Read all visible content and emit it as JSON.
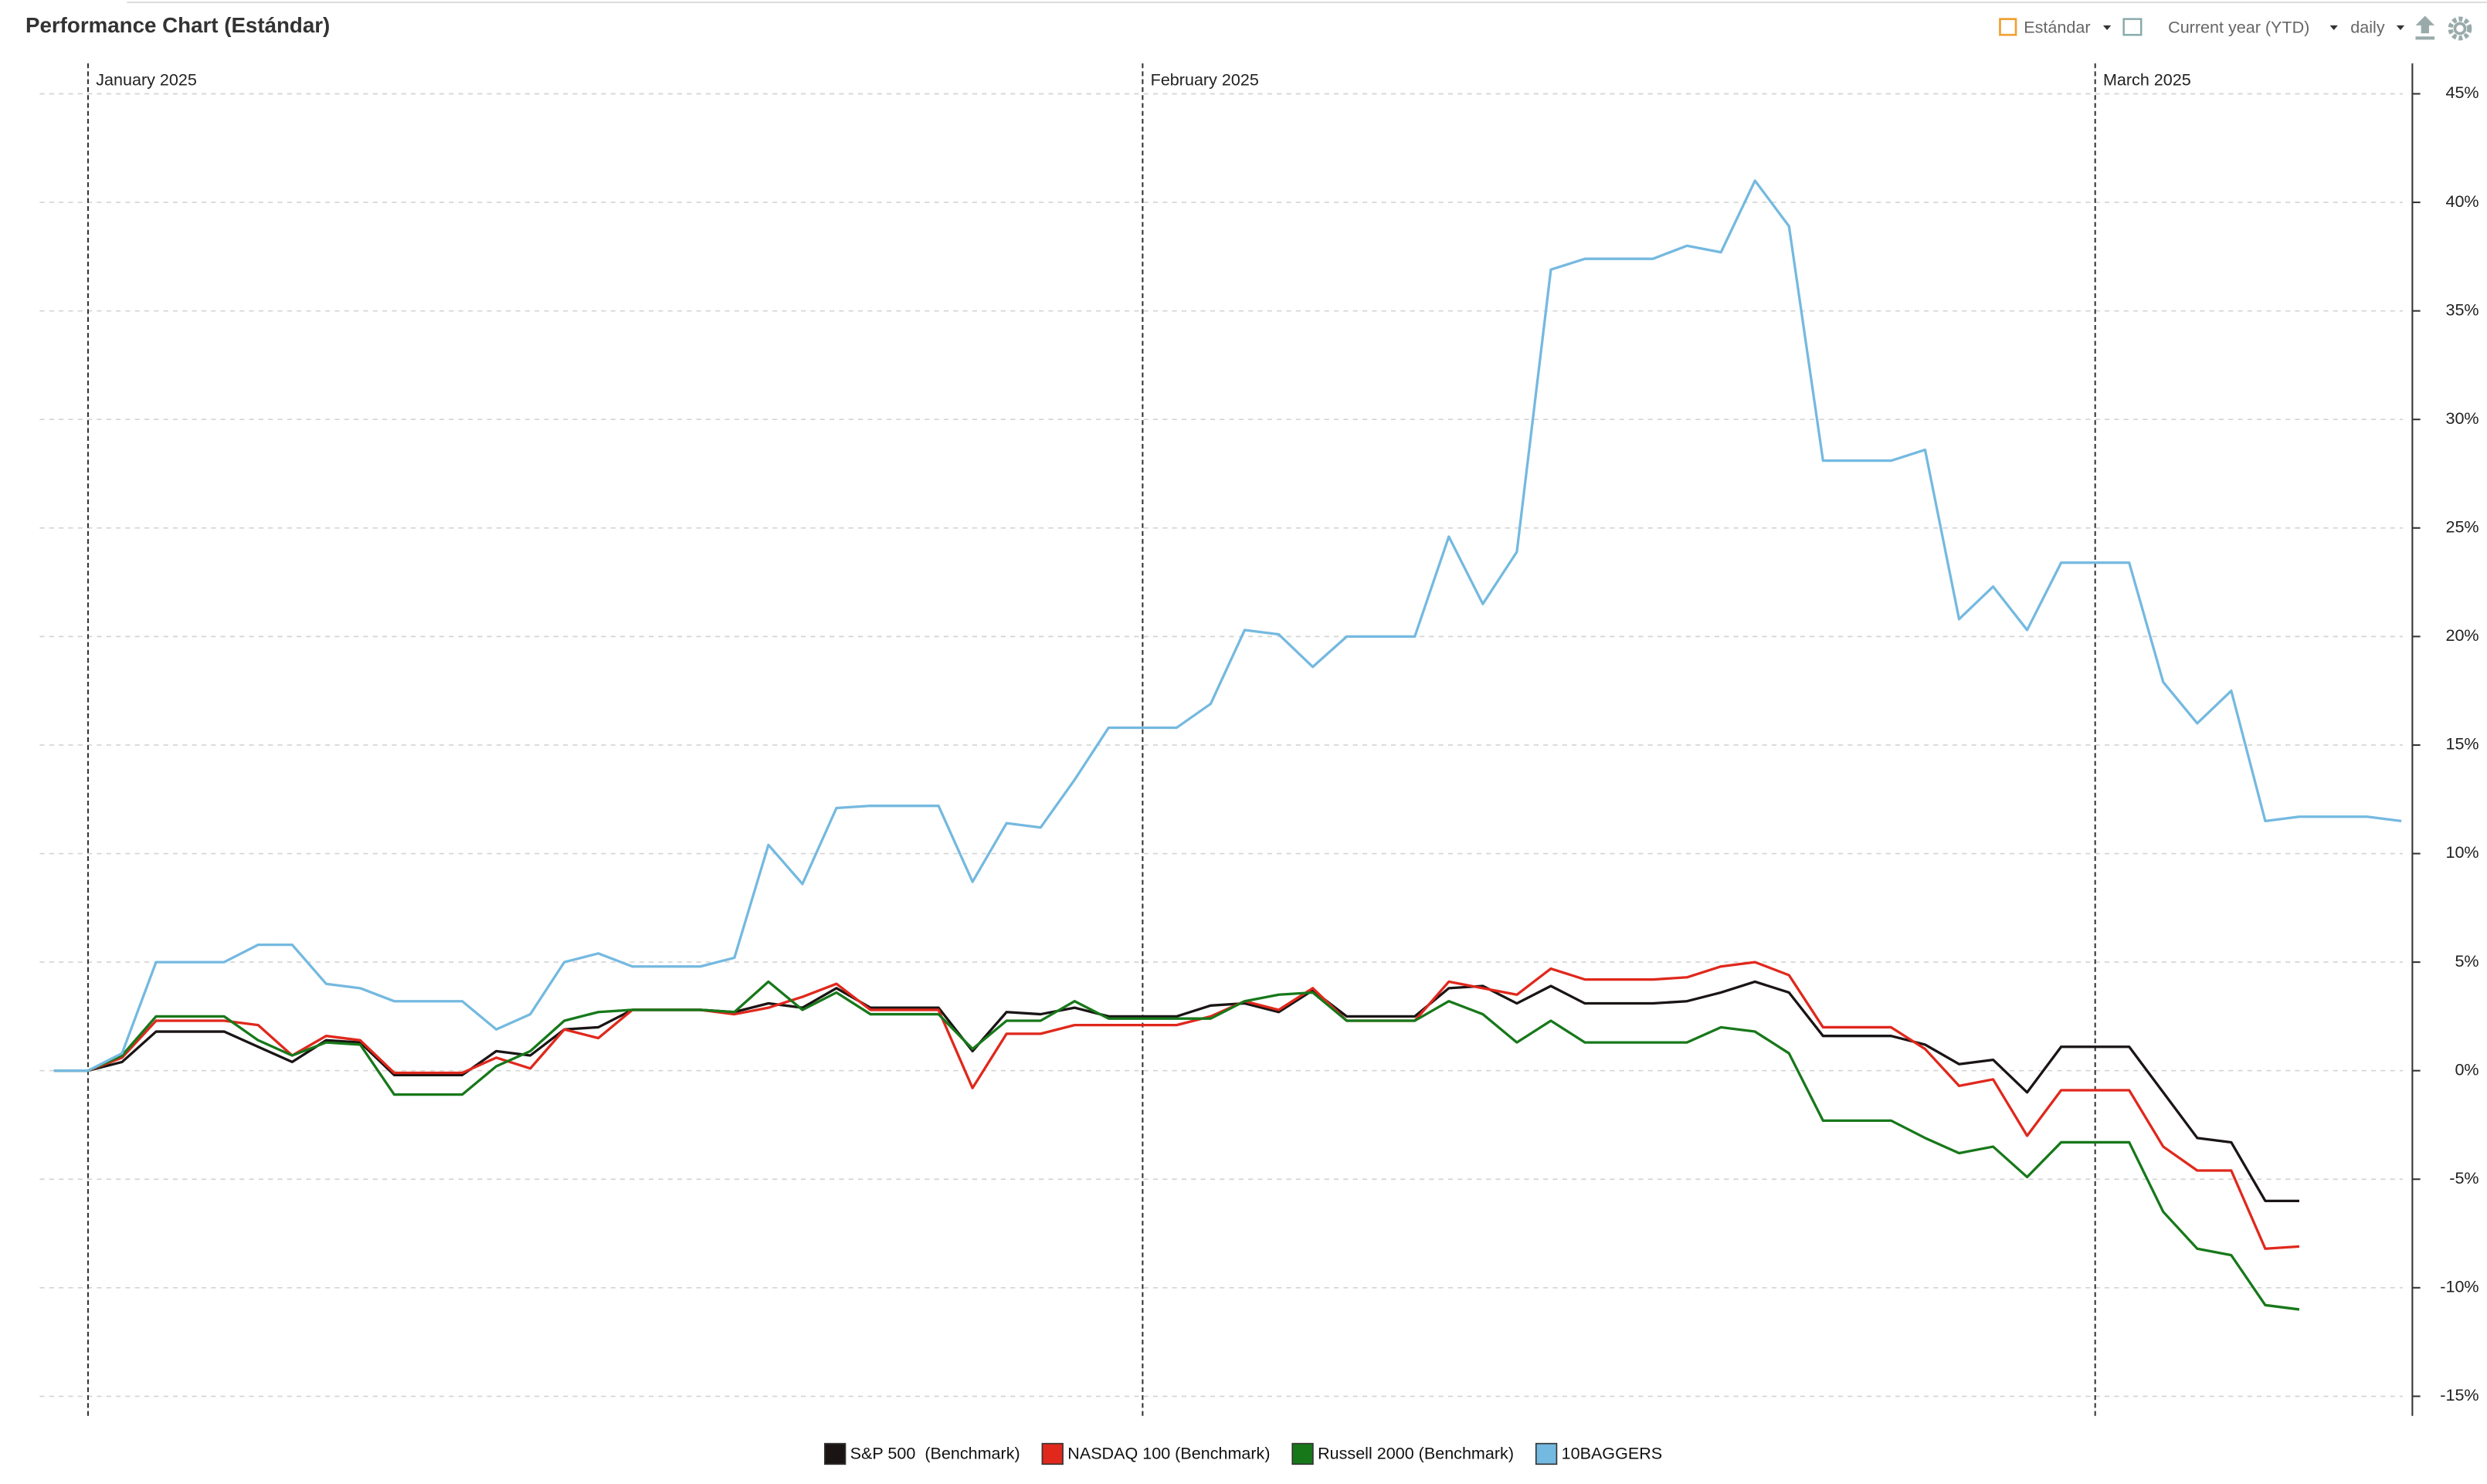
{
  "chart_data": {
    "type": "line",
    "title": "Performance Chart (Estándar)",
    "categories": [
      null,
      "January 2025",
      null,
      null,
      null,
      null,
      null,
      null,
      null,
      null,
      null,
      null,
      null,
      null,
      null,
      null,
      null,
      null,
      null,
      null,
      null,
      null,
      null,
      null,
      null,
      null,
      null,
      null,
      null,
      null,
      null,
      null,
      "February 2025",
      null,
      null,
      null,
      null,
      null,
      null,
      null,
      null,
      null,
      null,
      null,
      null,
      null,
      null,
      null,
      null,
      null,
      null,
      null,
      null,
      null,
      null,
      null,
      null,
      null,
      null,
      null,
      "March 2025",
      null,
      null,
      null,
      null,
      null,
      null,
      null,
      null,
      null
    ],
    "series": [
      {
        "name": "S&P 500  (Benchmark)",
        "color": "#1a1414",
        "values": [
          0,
          0,
          0.4,
          1.8,
          1.8,
          1.8,
          1.1,
          0.4,
          1.4,
          1.3,
          -0.2,
          -0.2,
          -0.2,
          0.9,
          0.7,
          1.9,
          2.0,
          2.8,
          2.8,
          2.8,
          2.7,
          3.1,
          2.9,
          3.8,
          2.9,
          2.9,
          2.9,
          0.9,
          2.7,
          2.6,
          2.9,
          2.5,
          2.5,
          2.5,
          3.0,
          3.1,
          2.7,
          3.7,
          2.5,
          2.5,
          2.5,
          3.8,
          3.9,
          3.1,
          3.9,
          3.1,
          3.1,
          3.1,
          3.2,
          3.6,
          4.1,
          3.6,
          1.6,
          1.6,
          1.6,
          1.2,
          0.3,
          0.5,
          -1.0,
          1.1,
          1.1,
          1.1,
          -1.0,
          -3.1,
          -3.3,
          -6.0,
          -6.0,
          null,
          null,
          null
        ]
      },
      {
        "name": "NASDAQ 100 (Benchmark)",
        "color": "#e0281c",
        "values": [
          0,
          0,
          0.6,
          2.3,
          2.3,
          2.3,
          2.1,
          0.7,
          1.6,
          1.4,
          -0.1,
          -0.1,
          -0.1,
          0.6,
          0.1,
          1.9,
          1.5,
          2.8,
          2.8,
          2.8,
          2.6,
          2.9,
          3.4,
          4.0,
          2.8,
          2.8,
          2.8,
          -0.8,
          1.7,
          1.7,
          2.1,
          2.1,
          2.1,
          2.1,
          2.5,
          3.2,
          2.8,
          3.8,
          2.3,
          2.3,
          2.3,
          4.1,
          3.8,
          3.5,
          4.7,
          4.2,
          4.2,
          4.2,
          4.3,
          4.8,
          5.0,
          4.4,
          2.0,
          2.0,
          2.0,
          1.0,
          -0.7,
          -0.4,
          -3.0,
          -0.9,
          -0.9,
          -0.9,
          -3.5,
          -4.6,
          -4.6,
          -8.2,
          -8.1,
          null,
          null,
          null
        ]
      },
      {
        "name": "Russell 2000 (Benchmark)",
        "color": "#17781a",
        "values": [
          0,
          0,
          0.7,
          2.5,
          2.5,
          2.5,
          1.4,
          0.7,
          1.3,
          1.2,
          -1.1,
          -1.1,
          -1.1,
          0.2,
          0.9,
          2.3,
          2.7,
          2.8,
          2.8,
          2.8,
          2.7,
          4.1,
          2.8,
          3.6,
          2.6,
          2.6,
          2.6,
          1.0,
          2.3,
          2.3,
          3.2,
          2.4,
          2.4,
          2.4,
          2.4,
          3.2,
          3.5,
          3.6,
          2.3,
          2.3,
          2.3,
          3.2,
          2.6,
          1.3,
          2.3,
          1.3,
          1.3,
          1.3,
          1.3,
          2.0,
          1.8,
          0.8,
          -2.3,
          -2.3,
          -2.3,
          -3.1,
          -3.8,
          -3.5,
          -4.9,
          -3.3,
          -3.3,
          -3.3,
          -6.5,
          -8.2,
          -8.5,
          -10.8,
          -11.0,
          null,
          null,
          null
        ]
      },
      {
        "name": "10BAGGERS",
        "color": "#74b9e0",
        "values": [
          0,
          0,
          0.8,
          5.0,
          5.0,
          5.0,
          5.8,
          5.8,
          4.0,
          3.8,
          3.2,
          3.2,
          3.2,
          1.9,
          2.6,
          5.0,
          5.4,
          4.8,
          4.8,
          4.8,
          5.2,
          10.4,
          8.6,
          12.1,
          12.2,
          12.2,
          12.2,
          8.7,
          11.4,
          11.2,
          13.4,
          15.8,
          15.8,
          15.8,
          16.9,
          20.3,
          20.1,
          18.6,
          20.0,
          20.0,
          20.0,
          24.6,
          21.5,
          23.9,
          36.9,
          37.4,
          37.4,
          37.4,
          38.0,
          37.7,
          41.0,
          38.9,
          28.1,
          28.1,
          28.1,
          28.6,
          20.8,
          22.3,
          20.3,
          23.4,
          23.4,
          23.4,
          17.9,
          16.0,
          17.5,
          11.5,
          11.7,
          11.7,
          11.7,
          11.5
        ]
      }
    ],
    "ylim": [
      -15.9,
      46.4
    ],
    "yticks": [
      {
        "value": 45,
        "label": "45%"
      },
      {
        "value": 40,
        "label": "40%"
      },
      {
        "value": 35,
        "label": "35%"
      },
      {
        "value": 30,
        "label": "30%"
      },
      {
        "value": 25,
        "label": "25%"
      },
      {
        "value": 20,
        "label": "20%"
      },
      {
        "value": 15,
        "label": "15%"
      },
      {
        "value": 10,
        "label": "10%"
      },
      {
        "value": 5,
        "label": "5%"
      },
      {
        "value": 0,
        "label": "0%"
      },
      {
        "value": -5,
        "label": "-5%"
      },
      {
        "value": -10,
        "label": "-10%"
      },
      {
        "value": -15,
        "label": "-15%"
      }
    ],
    "grid": true,
    "yaxis_side": "right",
    "legend": "bottom"
  },
  "toolbar": {
    "view": "Estándar",
    "period": "Current year (YTD)",
    "interval": "daily"
  }
}
